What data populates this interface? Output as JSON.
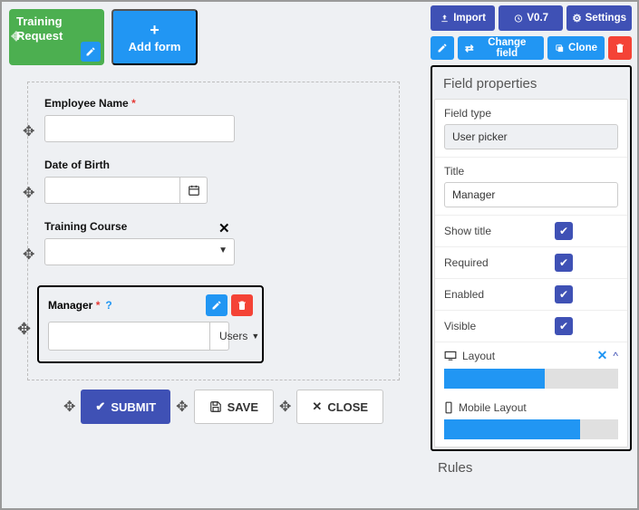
{
  "toolbar_left": {
    "training_request": "Training Request",
    "add_form": "Add form"
  },
  "toolbar_right": {
    "import": "Import",
    "version": "V0.7",
    "settings": "Settings",
    "change_field": "Change field",
    "clone": "Clone"
  },
  "form": {
    "fields": {
      "employee_name": {
        "label": "Employee Name",
        "required": true
      },
      "dob": {
        "label": "Date of Birth",
        "required": false
      },
      "training_course": {
        "label": "Training Course",
        "required": false
      },
      "manager": {
        "label": "Manager",
        "required": true,
        "picker_label": "Users"
      }
    },
    "actions": {
      "submit": "SUBMIT",
      "save": "SAVE",
      "close": "CLOSE"
    }
  },
  "properties": {
    "panel_title": "Field properties",
    "field_type_label": "Field type",
    "field_type_value": "User picker",
    "title_label": "Title",
    "title_value": "Manager",
    "show_title": {
      "label": "Show title",
      "checked": true
    },
    "required": {
      "label": "Required",
      "checked": true
    },
    "enabled": {
      "label": "Enabled",
      "checked": true
    },
    "visible": {
      "label": "Visible",
      "checked": true
    },
    "layout": {
      "label": "Layout",
      "percent": 58
    },
    "mobile_layout": {
      "label": "Mobile Layout",
      "percent": 78
    }
  },
  "rules_title": "Rules",
  "colors": {
    "green": "#4caf50",
    "blue": "#2196f3",
    "indigo": "#3f51b5",
    "red": "#f44336",
    "bg": "#eef0f3"
  }
}
